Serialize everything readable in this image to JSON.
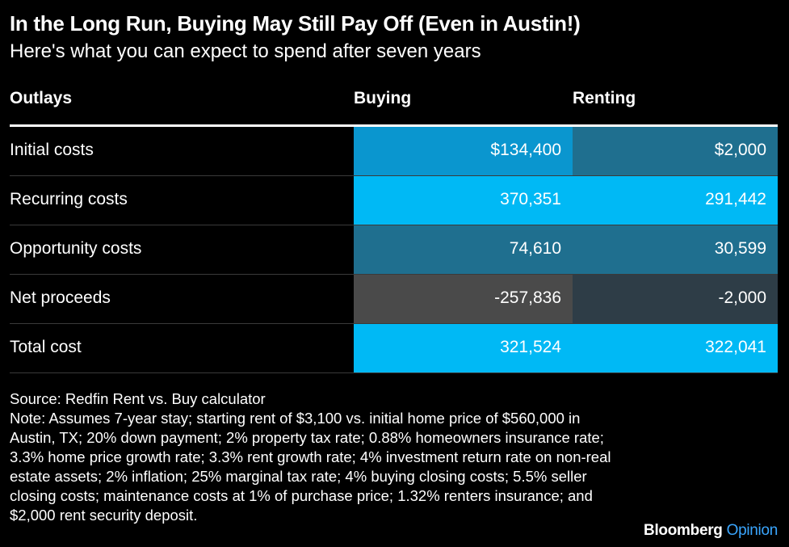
{
  "header": {
    "title": "In the Long Run, Buying May Still Pay Off (Even in Austin!)",
    "subtitle": "Here's what you can expect to spend after seven years"
  },
  "chart_data": {
    "type": "table",
    "columns": [
      "Outlays",
      "Buying",
      "Renting"
    ],
    "rows": [
      {
        "label": "Initial costs",
        "buying": "$134,400",
        "renting": "$2,000",
        "buying_value": 134400,
        "renting_value": 2000
      },
      {
        "label": "Recurring costs",
        "buying": "370,351",
        "renting": "291,442",
        "buying_value": 370351,
        "renting_value": 291442
      },
      {
        "label": "Opportunity costs",
        "buying": "74,610",
        "renting": "30,599",
        "buying_value": 74610,
        "renting_value": 30599
      },
      {
        "label": "Net proceeds",
        "buying": "-257,836",
        "renting": "-2,000",
        "buying_value": -257836,
        "renting_value": -2000
      },
      {
        "label": "Total cost",
        "buying": "321,524",
        "renting": "322,041",
        "buying_value": 321524,
        "renting_value": 322041
      }
    ],
    "colors": {
      "negative": "#4a4a4a",
      "negative_small": "#2e3d47",
      "low": "#1f6f8f",
      "mid": "#0a96cf",
      "high": "#00b9f5"
    }
  },
  "footer": {
    "source": "Source: Redfin Rent vs. Buy calculator",
    "note": "Note: Assumes 7-year stay; starting rent of $3,100 vs. initial home price of $560,000 in Austin, TX; 20% down payment; 2% property tax rate; 0.88% homeowners insurance rate; 3.3% home price growth rate; 3.3% rent growth rate; 4% investment return rate on non-real estate assets; 2% inflation; 25% marginal tax rate; 4% buying closing costs; 5.5% seller closing costs; maintenance costs at 1% of purchase price; 1.32% renters insurance; and $2,000 rent security deposit."
  },
  "brand": {
    "name": "Bloomberg",
    "section": "Opinion"
  }
}
